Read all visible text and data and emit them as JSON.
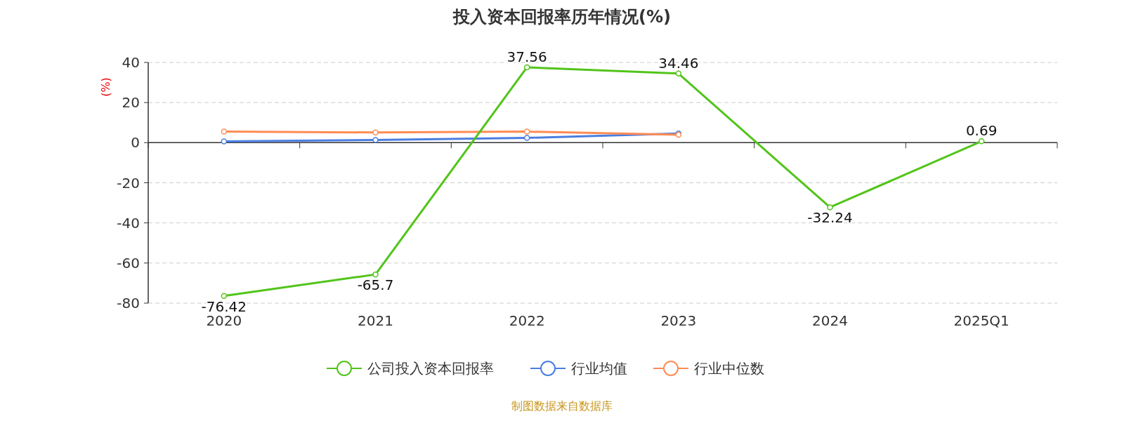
{
  "chart_data": {
    "type": "line",
    "title": "投入资本回报率历年情况(%)",
    "ylabel": "(%)",
    "categories": [
      "2020",
      "2021",
      "2022",
      "2023",
      "2024",
      "2025Q1"
    ],
    "series": [
      {
        "name": "公司投入资本回报率",
        "color": "#52c41a",
        "values": [
          -76.42,
          -65.7,
          37.56,
          34.46,
          -32.24,
          0.69
        ],
        "value_labels": [
          "-76.42",
          "-65.7",
          "37.56",
          "34.46",
          "-32.24",
          "0.69"
        ]
      },
      {
        "name": "行业均值",
        "color": "#4a7ee0",
        "values": [
          0.6,
          1.3,
          2.4,
          4.6,
          null,
          null
        ]
      },
      {
        "name": "行业中位数",
        "color": "#ff8c55",
        "values": [
          5.5,
          5.1,
          5.5,
          4.0,
          null,
          null
        ]
      }
    ],
    "ylim": [
      -80,
      40
    ],
    "yticks": [
      -80,
      -60,
      -40,
      -20,
      0,
      20,
      40
    ],
    "grid": "y",
    "legend": "bottom",
    "marker": "circle",
    "annotations": [
      "制图数据来自数据库"
    ]
  }
}
